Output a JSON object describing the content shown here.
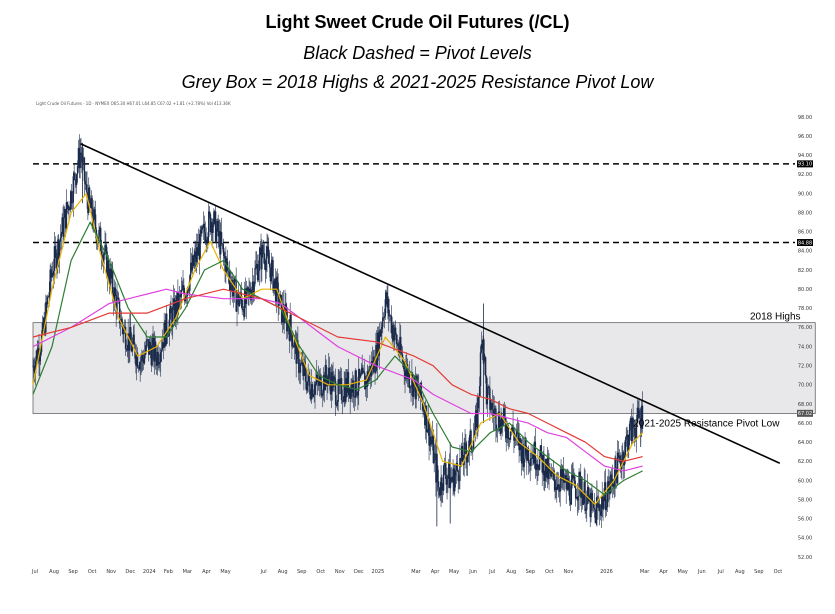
{
  "titles": {
    "main": "Light Sweet Crude Oil Futures (/CL)",
    "line2": "Black Dashed = Pivot Levels",
    "line3": "Grey Box = 2018 Highs & 2021-2025 Resistance Pivot Low"
  },
  "chart_data": {
    "type": "line",
    "legend_text": "Light Crude Oil Futures · 1D · NYMEX  O65.30  H67.01  L64.85  C67.02  +1.81 (+2.78%)  Vol 413.36K",
    "y_axis": {
      "min": 52,
      "max": 98,
      "ticks": [
        "98.00",
        "96.00",
        "94.00",
        "92.00",
        "90.00",
        "88.00",
        "86.00",
        "84.00",
        "82.00",
        "80.00",
        "78.00",
        "76.00",
        "74.00",
        "72.00",
        "70.00",
        "68.00",
        "66.00",
        "64.00",
        "62.00",
        "60.00",
        "58.00",
        "56.00",
        "54.00",
        "52.00"
      ]
    },
    "x_axis": {
      "range_months": [
        0,
        40
      ],
      "ticks": [
        {
          "t": 0,
          "label": "Jul"
        },
        {
          "t": 1,
          "label": "Aug"
        },
        {
          "t": 2,
          "label": "Sep"
        },
        {
          "t": 3,
          "label": "Oct"
        },
        {
          "t": 4,
          "label": "Nov"
        },
        {
          "t": 5,
          "label": "Dec"
        },
        {
          "t": 6,
          "label": "2024"
        },
        {
          "t": 7,
          "label": "Feb"
        },
        {
          "t": 8,
          "label": "Mar"
        },
        {
          "t": 9,
          "label": "Apr"
        },
        {
          "t": 10,
          "label": "May"
        },
        {
          "t": 12,
          "label": "Jul"
        },
        {
          "t": 13,
          "label": "Aug"
        },
        {
          "t": 14,
          "label": "Sep"
        },
        {
          "t": 15,
          "label": "Oct"
        },
        {
          "t": 16,
          "label": "Nov"
        },
        {
          "t": 17,
          "label": "Dec"
        },
        {
          "t": 18,
          "label": "2025"
        },
        {
          "t": 20,
          "label": "Mar"
        },
        {
          "t": 21,
          "label": "Apr"
        },
        {
          "t": 22,
          "label": "May"
        },
        {
          "t": 23,
          "label": "Jun"
        },
        {
          "t": 24,
          "label": "Jul"
        },
        {
          "t": 25,
          "label": "Aug"
        },
        {
          "t": 26,
          "label": "Sep"
        },
        {
          "t": 27,
          "label": "Oct"
        },
        {
          "t": 28,
          "label": "Nov"
        },
        {
          "t": 30,
          "label": "2026"
        },
        {
          "t": 32,
          "label": "Mar"
        },
        {
          "t": 33,
          "label": "Apr"
        },
        {
          "t": 34,
          "label": "May"
        },
        {
          "t": 35,
          "label": "Jun"
        },
        {
          "t": 36,
          "label": "Jul"
        },
        {
          "t": 37,
          "label": "Aug"
        },
        {
          "t": 38,
          "label": "Sep"
        },
        {
          "t": 39,
          "label": "Oct"
        }
      ]
    },
    "price_path": [
      [
        0,
        72
      ],
      [
        0.5,
        75
      ],
      [
        1,
        82
      ],
      [
        1.5,
        86
      ],
      [
        2,
        90
      ],
      [
        2.5,
        94.5
      ],
      [
        2.8,
        90
      ],
      [
        3.2,
        87
      ],
      [
        3.7,
        84
      ],
      [
        4.2,
        80
      ],
      [
        4.7,
        76
      ],
      [
        5.2,
        74
      ],
      [
        5.7,
        72.5
      ],
      [
        6,
        74
      ],
      [
        6.5,
        73
      ],
      [
        7,
        76
      ],
      [
        7.5,
        78
      ],
      [
        8,
        80
      ],
      [
        8.5,
        83
      ],
      [
        9,
        86
      ],
      [
        9.4,
        87.5
      ],
      [
        9.8,
        85
      ],
      [
        10.2,
        82
      ],
      [
        10.7,
        79
      ],
      [
        11.2,
        78.5
      ],
      [
        11.7,
        82
      ],
      [
        12.1,
        84
      ],
      [
        12.5,
        82
      ],
      [
        13,
        78
      ],
      [
        13.5,
        76
      ],
      [
        14,
        72
      ],
      [
        14.5,
        70
      ],
      [
        15,
        70
      ],
      [
        15.5,
        71
      ],
      [
        16,
        69
      ],
      [
        16.5,
        70
      ],
      [
        17,
        70
      ],
      [
        17.5,
        70.5
      ],
      [
        18,
        73
      ],
      [
        18.5,
        79
      ],
      [
        19,
        75
      ],
      [
        19.5,
        72
      ],
      [
        20,
        70
      ],
      [
        20.5,
        68
      ],
      [
        21,
        63
      ],
      [
        21.3,
        59
      ],
      [
        21.6,
        61
      ],
      [
        22,
        60
      ],
      [
        22.5,
        62
      ],
      [
        23,
        64
      ],
      [
        23.3,
        66
      ],
      [
        23.6,
        76
      ],
      [
        23.8,
        69
      ],
      [
        24.2,
        67
      ],
      [
        24.7,
        66
      ],
      [
        25.2,
        65
      ],
      [
        25.7,
        63
      ],
      [
        26.2,
        63
      ],
      [
        26.7,
        62
      ],
      [
        27.2,
        60
      ],
      [
        27.7,
        60
      ],
      [
        28.2,
        59
      ],
      [
        28.7,
        59.5
      ],
      [
        29.2,
        57.5
      ],
      [
        29.5,
        56.5
      ],
      [
        29.8,
        57.5
      ],
      [
        30.2,
        59
      ],
      [
        30.6,
        61
      ],
      [
        31,
        63
      ],
      [
        31.3,
        65
      ],
      [
        31.7,
        66
      ],
      [
        32,
        67
      ]
    ],
    "moving_averages": [
      {
        "name": "Fast MA",
        "color": "#e8b400",
        "path": [
          [
            0,
            70
          ],
          [
            1,
            80
          ],
          [
            2,
            88
          ],
          [
            2.8,
            90
          ],
          [
            3.5,
            84
          ],
          [
            4.5,
            77
          ],
          [
            5.5,
            73
          ],
          [
            6.5,
            74
          ],
          [
            7.5,
            77
          ],
          [
            8.5,
            82
          ],
          [
            9.3,
            85
          ],
          [
            10,
            82
          ],
          [
            11,
            79
          ],
          [
            12,
            80
          ],
          [
            12.8,
            80
          ],
          [
            13.5,
            76
          ],
          [
            14.5,
            71
          ],
          [
            15.5,
            70
          ],
          [
            16.5,
            70
          ],
          [
            17.5,
            70.5
          ],
          [
            18.5,
            75
          ],
          [
            19.5,
            72.5
          ],
          [
            20.5,
            68
          ],
          [
            21.5,
            62
          ],
          [
            22.5,
            61.5
          ],
          [
            23.5,
            66
          ],
          [
            24.5,
            67
          ],
          [
            25.5,
            64
          ],
          [
            26.5,
            62.5
          ],
          [
            27.5,
            60.5
          ],
          [
            28.5,
            59.5
          ],
          [
            29.5,
            57.5
          ],
          [
            30.5,
            60
          ],
          [
            31.5,
            64
          ],
          [
            32,
            65
          ]
        ]
      },
      {
        "name": "Medium MA",
        "color": "#2e7d32",
        "path": [
          [
            0,
            69
          ],
          [
            1,
            74
          ],
          [
            2,
            83
          ],
          [
            3,
            87
          ],
          [
            4,
            83
          ],
          [
            5,
            78
          ],
          [
            6,
            75
          ],
          [
            7,
            75
          ],
          [
            8,
            78
          ],
          [
            9,
            82
          ],
          [
            10,
            83
          ],
          [
            11,
            80
          ],
          [
            12,
            79
          ],
          [
            13,
            78
          ],
          [
            14,
            74
          ],
          [
            15,
            71
          ],
          [
            16,
            70
          ],
          [
            17,
            69.5
          ],
          [
            18,
            70.5
          ],
          [
            19,
            73
          ],
          [
            20,
            71
          ],
          [
            21,
            67
          ],
          [
            22,
            63.5
          ],
          [
            23,
            63
          ],
          [
            24,
            65
          ],
          [
            25,
            66
          ],
          [
            26,
            64
          ],
          [
            27,
            62.5
          ],
          [
            28,
            61
          ],
          [
            29,
            60
          ],
          [
            30,
            58.5
          ],
          [
            31,
            60
          ],
          [
            32,
            61
          ]
        ]
      },
      {
        "name": "Slow MA",
        "color": "#e040e0",
        "path": [
          [
            0,
            74
          ],
          [
            2,
            76
          ],
          [
            4,
            78.5
          ],
          [
            6,
            79.5
          ],
          [
            7,
            80
          ],
          [
            8,
            79.5
          ],
          [
            10,
            79
          ],
          [
            12,
            79
          ],
          [
            13,
            78.5
          ],
          [
            14,
            77
          ],
          [
            16,
            74
          ],
          [
            18,
            72
          ],
          [
            20,
            70.5
          ],
          [
            21,
            69
          ],
          [
            22,
            68
          ],
          [
            23,
            67
          ],
          [
            24,
            67
          ],
          [
            25,
            66.5
          ],
          [
            26,
            66
          ],
          [
            27,
            65
          ],
          [
            28,
            64.5
          ],
          [
            29,
            63
          ],
          [
            30,
            61.5
          ],
          [
            31,
            61
          ],
          [
            32,
            61.5
          ]
        ]
      },
      {
        "name": "Long MA",
        "color": "#e53935",
        "path": [
          [
            0,
            75
          ],
          [
            2,
            76
          ],
          [
            4,
            77.5
          ],
          [
            6,
            77.5
          ],
          [
            8,
            79
          ],
          [
            10,
            80
          ],
          [
            12,
            79
          ],
          [
            14,
            77
          ],
          [
            15,
            76
          ],
          [
            16,
            75
          ],
          [
            18,
            74.5
          ],
          [
            20,
            73
          ],
          [
            21,
            72
          ],
          [
            22,
            70
          ],
          [
            23,
            69
          ],
          [
            24,
            68.5
          ],
          [
            25,
            67.5
          ],
          [
            26,
            67
          ],
          [
            27,
            66
          ],
          [
            28,
            65
          ],
          [
            29,
            64
          ],
          [
            30,
            62.5
          ],
          [
            31,
            62
          ],
          [
            32,
            62.5
          ]
        ]
      }
    ],
    "pivot_levels": [
      {
        "value": 93.1,
        "label": "93.10"
      },
      {
        "value": 84.88,
        "label": "84.88"
      }
    ],
    "current_price_label": "67.02",
    "resistance_box": {
      "top": 76.5,
      "bottom": 67.0
    },
    "trendline": {
      "start": [
        2.5,
        95.2
      ],
      "end": [
        39.2,
        61.8
      ]
    },
    "annotations": {
      "box_top": "2018 Highs",
      "box_bottom": "2021-2025 Resistance Pivot Low"
    }
  }
}
